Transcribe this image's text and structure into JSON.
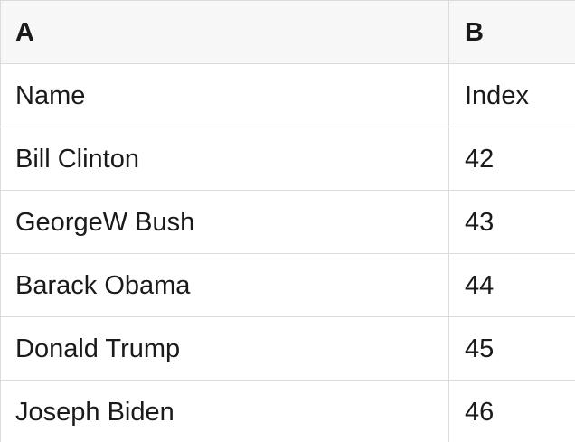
{
  "table": {
    "columns": [
      {
        "id": "A",
        "label": "A"
      },
      {
        "id": "B",
        "label": "B"
      }
    ],
    "rows": [
      {
        "a": "Name",
        "b": "Index"
      },
      {
        "a": "Bill Clinton",
        "b": "42"
      },
      {
        "a": "GeorgeW Bush",
        "b": "43"
      },
      {
        "a": "Barack Obama",
        "b": "44"
      },
      {
        "a": "Donald Trump",
        "b": "45"
      },
      {
        "a": "Joseph Biden",
        "b": "46"
      }
    ],
    "colors": {
      "header_bg": "#f7f7f7",
      "row_bg": "#ffffff",
      "border": "#dbdbdb",
      "text": "#1a1a1a"
    }
  }
}
